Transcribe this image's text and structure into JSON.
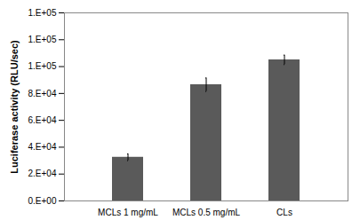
{
  "chart_data": {
    "type": "bar",
    "categories": [
      "MCLs 1 mg/mL",
      "MCLs 0.5 mg/mL",
      "CLs"
    ],
    "values": [
      32500,
      86500,
      105000
    ],
    "errors": [
      2500,
      5000,
      3500
    ],
    "color": "#5a5a5a",
    "y_label": "Luciferase activity (RLU/sec)",
    "ylim": [
      0,
      140000
    ],
    "yticks": [
      {
        "value": 0,
        "label": "0.E+00"
      },
      {
        "value": 20000,
        "label": "2.E+04"
      },
      {
        "value": 40000,
        "label": "4.E+04"
      },
      {
        "value": 60000,
        "label": "6.E+04"
      },
      {
        "value": 80000,
        "label": "8.E+04"
      },
      {
        "value": 100000,
        "label": "1.E+05"
      },
      {
        "value": 120000,
        "label": "1.E+05"
      },
      {
        "value": 140000,
        "label": "1.E+05"
      }
    ],
    "grid": false
  }
}
